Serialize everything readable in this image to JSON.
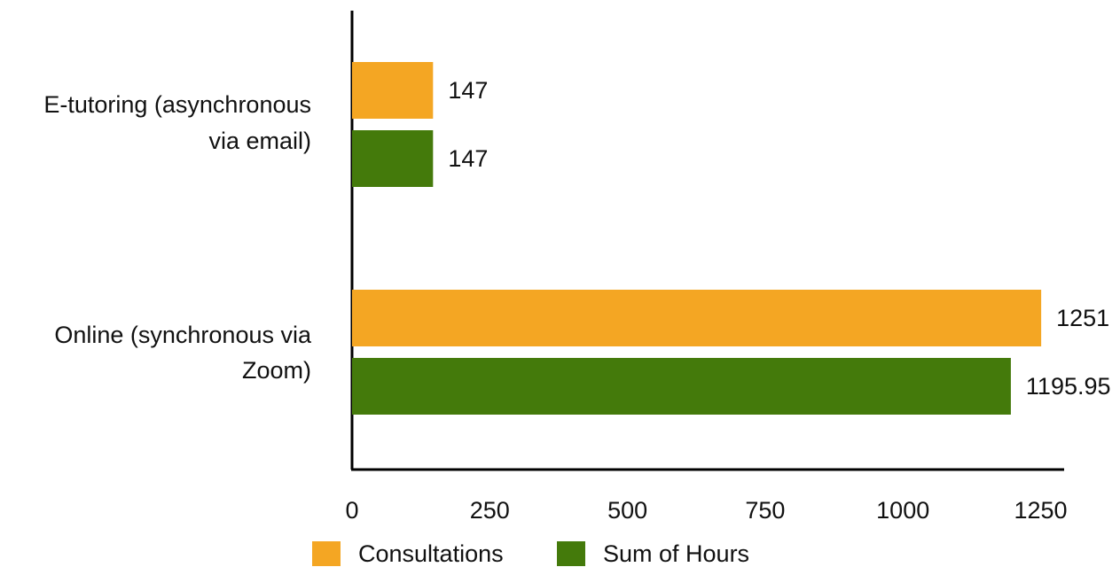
{
  "chart_data": {
    "type": "bar",
    "orientation": "horizontal",
    "categories": [
      [
        "E-tutoring (asynchronous",
        "via email)"
      ],
      [
        "Online (synchronous via",
        "Zoom)"
      ]
    ],
    "series": [
      {
        "name": "Consultations",
        "color": "#f4a623",
        "values": [
          147,
          1251
        ],
        "labels": [
          "147",
          "1251"
        ]
      },
      {
        "name": "Sum of Hours",
        "color": "#447a0b",
        "values": [
          147,
          1195.95
        ],
        "labels": [
          "147",
          "1195.95"
        ]
      }
    ],
    "xticks": [
      0,
      250,
      500,
      750,
      1000,
      1250
    ],
    "xlim": [
      0,
      1300
    ],
    "grid": false,
    "legend": "bottom-center"
  }
}
